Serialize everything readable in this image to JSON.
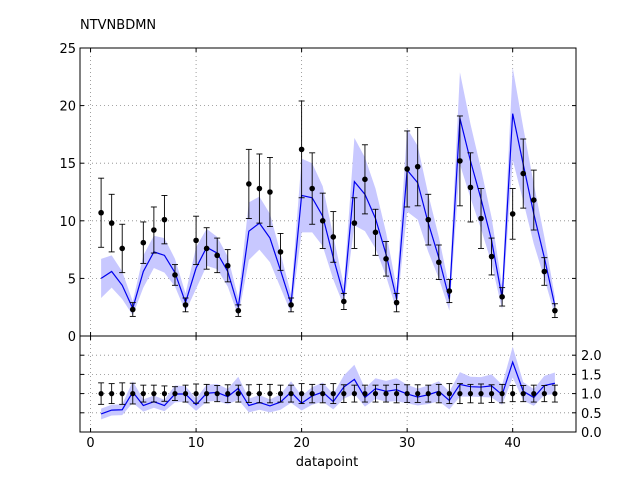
{
  "chart_data": [
    {
      "type": "line",
      "title": "NTVNBDMN",
      "xlabel": "",
      "ylabel": "",
      "xlim": [
        -1,
        46
      ],
      "ylim": [
        0,
        25
      ],
      "xticks": [
        0,
        10,
        20,
        30,
        40
      ],
      "yticks": [
        0,
        5,
        10,
        15,
        20,
        25
      ],
      "grid": true,
      "series": [
        {
          "kind": "errorbar",
          "color": "#000000",
          "x": [
            1,
            2,
            3,
            4,
            5,
            6,
            7,
            8,
            9,
            10,
            11,
            12,
            13,
            14,
            15,
            16,
            17,
            18,
            19,
            20,
            21,
            22,
            23,
            24,
            25,
            26,
            27,
            28,
            29,
            30,
            31,
            32,
            33,
            34,
            35,
            36,
            37,
            38,
            39,
            40,
            41,
            42,
            43,
            44
          ],
          "y": [
            10.7,
            9.8,
            7.6,
            2.3,
            8.1,
            9.2,
            10.1,
            5.3,
            2.7,
            8.3,
            7.6,
            7.0,
            6.1,
            2.2,
            13.2,
            12.8,
            12.5,
            7.3,
            2.7,
            16.2,
            12.8,
            10.0,
            8.6,
            3.0,
            9.8,
            13.6,
            9.0,
            6.7,
            2.9,
            14.5,
            14.7,
            10.1,
            6.4,
            3.9,
            15.2,
            12.9,
            10.2,
            6.9,
            3.4,
            10.6,
            14.1,
            11.8,
            5.6,
            2.2
          ],
          "yerr": [
            3.0,
            2.5,
            2.1,
            0.6,
            1.8,
            2.0,
            2.1,
            0.9,
            0.6,
            2.1,
            1.8,
            1.5,
            1.4,
            0.5,
            3.0,
            3.0,
            3.0,
            1.6,
            0.6,
            4.2,
            3.1,
            2.4,
            2.2,
            0.7,
            2.2,
            3.0,
            2.0,
            1.5,
            0.8,
            3.3,
            3.4,
            2.2,
            1.5,
            1.0,
            3.9,
            3.0,
            2.6,
            1.6,
            0.8,
            2.2,
            3.0,
            2.6,
            1.2,
            0.6
          ]
        },
        {
          "kind": "model",
          "color": "#0000ee",
          "band_color": "#c8c8ff",
          "x": [
            1,
            2,
            3,
            4,
            5,
            6,
            7,
            8,
            9,
            10,
            11,
            12,
            13,
            14,
            15,
            16,
            17,
            18,
            19,
            20,
            21,
            22,
            23,
            24,
            25,
            26,
            27,
            28,
            29,
            30,
            31,
            32,
            33,
            34,
            35,
            36,
            37,
            38,
            39,
            40,
            41,
            42,
            43,
            44
          ],
          "y": [
            5.0,
            5.6,
            4.4,
            2.4,
            5.6,
            7.3,
            7.0,
            5.5,
            2.9,
            5.9,
            7.7,
            7.2,
            5.6,
            2.5,
            9.1,
            9.8,
            8.5,
            5.7,
            2.8,
            12.2,
            12.0,
            10.4,
            6.8,
            3.5,
            13.4,
            12.3,
            10.2,
            7.1,
            3.2,
            14.4,
            13.3,
            9.8,
            6.8,
            3.2,
            18.9,
            15.2,
            11.9,
            8.3,
            3.3,
            19.3,
            14.9,
            10.6,
            6.8,
            2.6
          ],
          "band": [
            1.7,
            1.4,
            1.2,
            0.6,
            1.4,
            1.4,
            1.5,
            1.2,
            0.8,
            1.8,
            1.6,
            1.4,
            1.3,
            0.8,
            2.5,
            2.3,
            2.1,
            1.5,
            0.8,
            3.2,
            3.0,
            2.6,
            1.9,
            0.9,
            3.8,
            3.2,
            2.6,
            1.9,
            1.0,
            3.6,
            3.2,
            2.5,
            1.8,
            1.0,
            4.0,
            3.2,
            2.6,
            2.0,
            1.0,
            4.0,
            3.2,
            2.6,
            1.8,
            0.8
          ]
        }
      ]
    },
    {
      "type": "line",
      "title": "",
      "xlabel": "datapoint",
      "ylabel": "",
      "xlim": [
        -1,
        46
      ],
      "ylim": [
        0,
        2.5
      ],
      "xticks": [
        0,
        10,
        20,
        30,
        40
      ],
      "yticks": [
        0.0,
        0.5,
        1.0,
        1.5,
        2.0
      ],
      "grid": true,
      "series": [
        {
          "kind": "errorbar",
          "color": "#000000",
          "x": [
            1,
            2,
            3,
            4,
            5,
            6,
            7,
            8,
            9,
            10,
            11,
            12,
            13,
            14,
            15,
            16,
            17,
            18,
            19,
            20,
            21,
            22,
            23,
            24,
            25,
            26,
            27,
            28,
            29,
            30,
            31,
            32,
            33,
            34,
            35,
            36,
            37,
            38,
            39,
            40,
            41,
            42,
            43,
            44
          ],
          "y": [
            1,
            1,
            1,
            1,
            1,
            1,
            1,
            1,
            1,
            1,
            1,
            1,
            1,
            1,
            1,
            1,
            1,
            1,
            1,
            1,
            1,
            1,
            1,
            1,
            1,
            1,
            1,
            1,
            1,
            1,
            1,
            1,
            1,
            1,
            1,
            1,
            1,
            1,
            1,
            1,
            1,
            1,
            1,
            1
          ],
          "yerr": [
            0.28,
            0.26,
            0.28,
            0.27,
            0.22,
            0.22,
            0.2,
            0.18,
            0.22,
            0.25,
            0.24,
            0.21,
            0.23,
            0.22,
            0.23,
            0.24,
            0.24,
            0.22,
            0.22,
            0.26,
            0.24,
            0.24,
            0.26,
            0.23,
            0.22,
            0.22,
            0.22,
            0.22,
            0.24,
            0.23,
            0.23,
            0.22,
            0.24,
            0.26,
            0.26,
            0.24,
            0.25,
            0.23,
            0.24,
            0.21,
            0.21,
            0.22,
            0.21,
            0.22
          ]
        },
        {
          "kind": "model",
          "color": "#0000ee",
          "band_color": "#c8c8ff",
          "x": [
            1,
            2,
            3,
            4,
            5,
            6,
            7,
            8,
            9,
            10,
            11,
            12,
            13,
            14,
            15,
            16,
            17,
            18,
            19,
            20,
            21,
            22,
            23,
            24,
            25,
            26,
            27,
            28,
            29,
            30,
            31,
            32,
            33,
            34,
            35,
            36,
            37,
            38,
            39,
            40,
            41,
            42,
            43,
            44
          ],
          "y": [
            0.47,
            0.57,
            0.58,
            1.04,
            0.69,
            0.79,
            0.69,
            0.99,
            0.99,
            0.71,
            1.01,
            1.03,
            0.92,
            1.14,
            0.69,
            0.77,
            0.68,
            0.78,
            1.04,
            0.75,
            0.94,
            1.04,
            0.79,
            1.17,
            1.37,
            0.9,
            1.13,
            1.06,
            1.1,
            0.99,
            0.91,
            0.97,
            1.06,
            0.82,
            1.24,
            1.18,
            1.17,
            1.2,
            0.97,
            1.82,
            1.06,
            0.9,
            1.21,
            1.27
          ],
          "band": [
            0.14,
            0.14,
            0.14,
            0.28,
            0.16,
            0.16,
            0.15,
            0.22,
            0.2,
            0.16,
            0.22,
            0.22,
            0.2,
            0.3,
            0.18,
            0.19,
            0.17,
            0.2,
            0.28,
            0.19,
            0.23,
            0.25,
            0.2,
            0.3,
            0.38,
            0.24,
            0.27,
            0.27,
            0.3,
            0.24,
            0.22,
            0.24,
            0.26,
            0.23,
            0.32,
            0.26,
            0.26,
            0.3,
            0.26,
            0.4,
            0.24,
            0.22,
            0.25,
            0.28
          ]
        }
      ]
    }
  ]
}
